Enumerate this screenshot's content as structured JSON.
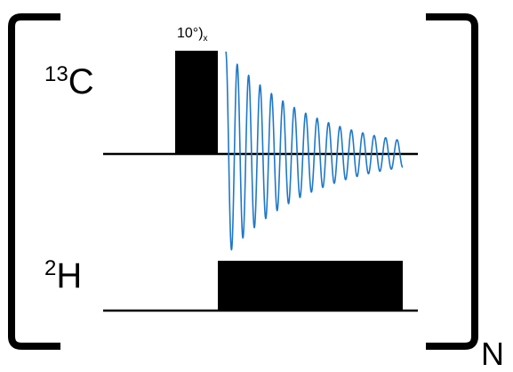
{
  "channels": {
    "carbon": {
      "mass": "13",
      "element": "C"
    },
    "deuterium": {
      "mass": "2",
      "element": "H"
    }
  },
  "pulse": {
    "angle": "10°)",
    "phase": "x"
  },
  "repeat": "N",
  "colors": {
    "fid": "#1f78c8",
    "ink": "#000000"
  },
  "fid": {
    "cycles": 15.5,
    "decay_ratio": 0.13
  }
}
